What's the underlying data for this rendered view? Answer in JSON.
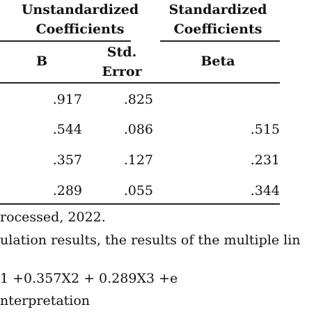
{
  "table": {
    "group_headers": [
      "Unstandardized Coefficients",
      "Standardized Coefficients"
    ],
    "sub_headers": [
      "B",
      "Std. Error",
      "Beta"
    ],
    "rows": [
      [
        ".917",
        ".825",
        null
      ],
      [
        ".544",
        ".086",
        ".515"
      ],
      [
        ".357",
        ".127",
        ".231"
      ],
      [
        ".289",
        ".055",
        ".344"
      ]
    ]
  },
  "text": [
    "rocessed, 2022.",
    "ulation results, the results of the multiple lin",
    "1 +0.357X2 + 0.289X3 +e",
    "nterpretation"
  ]
}
